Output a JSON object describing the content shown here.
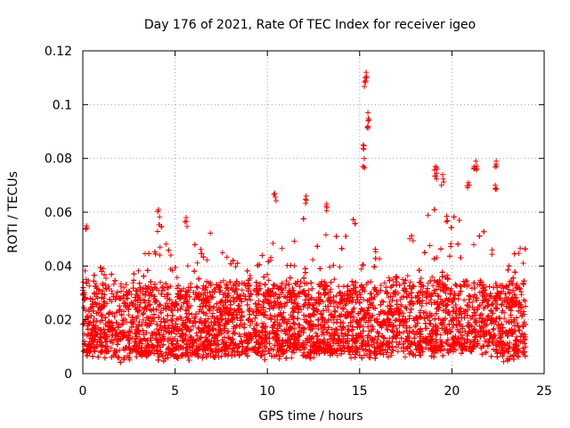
{
  "chart_data": {
    "type": "scatter",
    "title": "Day 176 of 2021, Rate Of TEC Index for receiver igeo",
    "xlabel": "GPS time / hours",
    "ylabel": "ROTI / TECUs",
    "xlim": [
      0,
      25
    ],
    "ylim": [
      0,
      0.12
    ],
    "xticks": [
      0,
      5,
      10,
      15,
      20,
      25
    ],
    "xtick_labels": [
      "0",
      "5",
      "10",
      "15",
      "20",
      "25"
    ],
    "yticks": [
      0,
      0.02,
      0.04,
      0.06,
      0.08,
      0.1,
      0.12
    ],
    "ytick_labels": [
      "0",
      "0.02",
      "0.04",
      "0.06",
      "0.08",
      "0.1",
      "0.12"
    ],
    "grid": true,
    "marker": "+",
    "color": "#ff0000",
    "data_range": {
      "x": [
        0,
        24
      ],
      "y_min_approx": 0.004
    },
    "series": [
      {
        "name": "ROTI",
        "points_summary": "dense band ~0.008-0.035 TECU/s across 0-24 h; spikes to ~0.11 near 15.3 h, ~0.079 near 21.3 h and 22.4 h, ~0.077 near 19.1 h",
        "highlights": [
          {
            "x": 15.35,
            "y": 0.112
          },
          {
            "x": 15.3,
            "y": 0.11
          },
          {
            "x": 15.45,
            "y": 0.097
          },
          {
            "x": 15.45,
            "y": 0.092
          },
          {
            "x": 15.2,
            "y": 0.085
          },
          {
            "x": 15.25,
            "y": 0.08
          },
          {
            "x": 19.1,
            "y": 0.077
          },
          {
            "x": 19.2,
            "y": 0.076
          },
          {
            "x": 19.5,
            "y": 0.074
          },
          {
            "x": 21.3,
            "y": 0.079
          },
          {
            "x": 21.2,
            "y": 0.077
          },
          {
            "x": 22.4,
            "y": 0.079
          },
          {
            "x": 22.35,
            "y": 0.07
          },
          {
            "x": 20.9,
            "y": 0.071
          },
          {
            "x": 10.4,
            "y": 0.067
          },
          {
            "x": 12.1,
            "y": 0.066
          },
          {
            "x": 4.1,
            "y": 0.061
          },
          {
            "x": 5.6,
            "y": 0.058
          },
          {
            "x": 13.2,
            "y": 0.063
          },
          {
            "x": 0.2,
            "y": 0.055
          }
        ],
        "envelope": [
          {
            "x": 0.0,
            "lo": 0.009,
            "hi": 0.04
          },
          {
            "x": 0.3,
            "lo": 0.009,
            "hi": 0.055
          },
          {
            "x": 1.0,
            "lo": 0.008,
            "hi": 0.04
          },
          {
            "x": 2.0,
            "lo": 0.007,
            "hi": 0.038
          },
          {
            "x": 3.0,
            "lo": 0.007,
            "hi": 0.04
          },
          {
            "x": 4.0,
            "lo": 0.007,
            "hi": 0.06
          },
          {
            "x": 5.0,
            "lo": 0.007,
            "hi": 0.04
          },
          {
            "x": 6.0,
            "lo": 0.008,
            "hi": 0.048
          },
          {
            "x": 7.0,
            "lo": 0.008,
            "hi": 0.055
          },
          {
            "x": 8.0,
            "lo": 0.008,
            "hi": 0.045
          },
          {
            "x": 9.0,
            "lo": 0.008,
            "hi": 0.04
          },
          {
            "x": 10.0,
            "lo": 0.008,
            "hi": 0.05
          },
          {
            "x": 11.0,
            "lo": 0.008,
            "hi": 0.048
          },
          {
            "x": 12.0,
            "lo": 0.008,
            "hi": 0.06
          },
          {
            "x": 13.0,
            "lo": 0.008,
            "hi": 0.06
          },
          {
            "x": 14.0,
            "lo": 0.008,
            "hi": 0.05
          },
          {
            "x": 15.0,
            "lo": 0.008,
            "hi": 0.062
          },
          {
            "x": 16.0,
            "lo": 0.008,
            "hi": 0.045
          },
          {
            "x": 17.0,
            "lo": 0.009,
            "hi": 0.04
          },
          {
            "x": 18.0,
            "lo": 0.009,
            "hi": 0.055
          },
          {
            "x": 19.0,
            "lo": 0.009,
            "hi": 0.065
          },
          {
            "x": 20.0,
            "lo": 0.01,
            "hi": 0.06
          },
          {
            "x": 21.0,
            "lo": 0.01,
            "hi": 0.065
          },
          {
            "x": 22.0,
            "lo": 0.009,
            "hi": 0.058
          },
          {
            "x": 23.0,
            "lo": 0.007,
            "hi": 0.045
          },
          {
            "x": 24.0,
            "lo": 0.008,
            "hi": 0.048
          }
        ]
      }
    ]
  }
}
